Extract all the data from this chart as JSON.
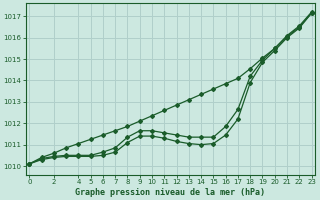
{
  "title": "Graphe pression niveau de la mer (hPa)",
  "bg_color": "#cce8e0",
  "grid_color": "#b0cfca",
  "line_color": "#1a5c2a",
  "ylim": [
    1009.6,
    1017.6
  ],
  "xlim": [
    -0.3,
    23.3
  ],
  "yticks": [
    1010,
    1011,
    1012,
    1013,
    1014,
    1015,
    1016,
    1017
  ],
  "xticks": [
    0,
    2,
    4,
    5,
    6,
    7,
    8,
    9,
    10,
    11,
    12,
    13,
    14,
    15,
    16,
    17,
    18,
    19,
    20,
    21,
    22,
    23
  ],
  "series_linear": {
    "x": [
      0,
      1,
      2,
      3,
      4,
      5,
      6,
      7,
      8,
      9,
      10,
      11,
      12,
      13,
      14,
      15,
      16,
      17,
      18,
      19,
      20,
      21,
      22,
      23
    ],
    "y": [
      1010.1,
      1010.4,
      1010.6,
      1010.85,
      1011.05,
      1011.25,
      1011.45,
      1011.65,
      1011.85,
      1012.1,
      1012.35,
      1012.6,
      1012.85,
      1013.1,
      1013.35,
      1013.6,
      1013.85,
      1014.1,
      1014.55,
      1015.05,
      1015.5,
      1016.05,
      1016.5,
      1017.15
    ]
  },
  "series_hump1": {
    "x": [
      0,
      1,
      2,
      3,
      4,
      5,
      6,
      7,
      8,
      9,
      10,
      11,
      12,
      13,
      14,
      15,
      16,
      17,
      18,
      19,
      20,
      21,
      22,
      23
    ],
    "y": [
      1010.1,
      1010.35,
      1010.45,
      1010.5,
      1010.5,
      1010.5,
      1010.65,
      1010.85,
      1011.35,
      1011.65,
      1011.65,
      1011.55,
      1011.45,
      1011.35,
      1011.35,
      1011.35,
      1011.85,
      1012.65,
      1014.2,
      1014.95,
      1015.5,
      1016.1,
      1016.55,
      1017.2
    ]
  },
  "series_hump2": {
    "x": [
      0,
      1,
      2,
      3,
      4,
      5,
      6,
      7,
      8,
      9,
      10,
      11,
      12,
      13,
      14,
      15,
      16,
      17,
      18,
      19,
      20,
      21,
      22,
      23
    ],
    "y": [
      1010.1,
      1010.3,
      1010.4,
      1010.45,
      1010.45,
      1010.45,
      1010.5,
      1010.65,
      1011.1,
      1011.4,
      1011.4,
      1011.3,
      1011.15,
      1011.05,
      1011.0,
      1011.05,
      1011.45,
      1012.2,
      1013.9,
      1014.85,
      1015.4,
      1016.0,
      1016.45,
      1017.15
    ]
  }
}
